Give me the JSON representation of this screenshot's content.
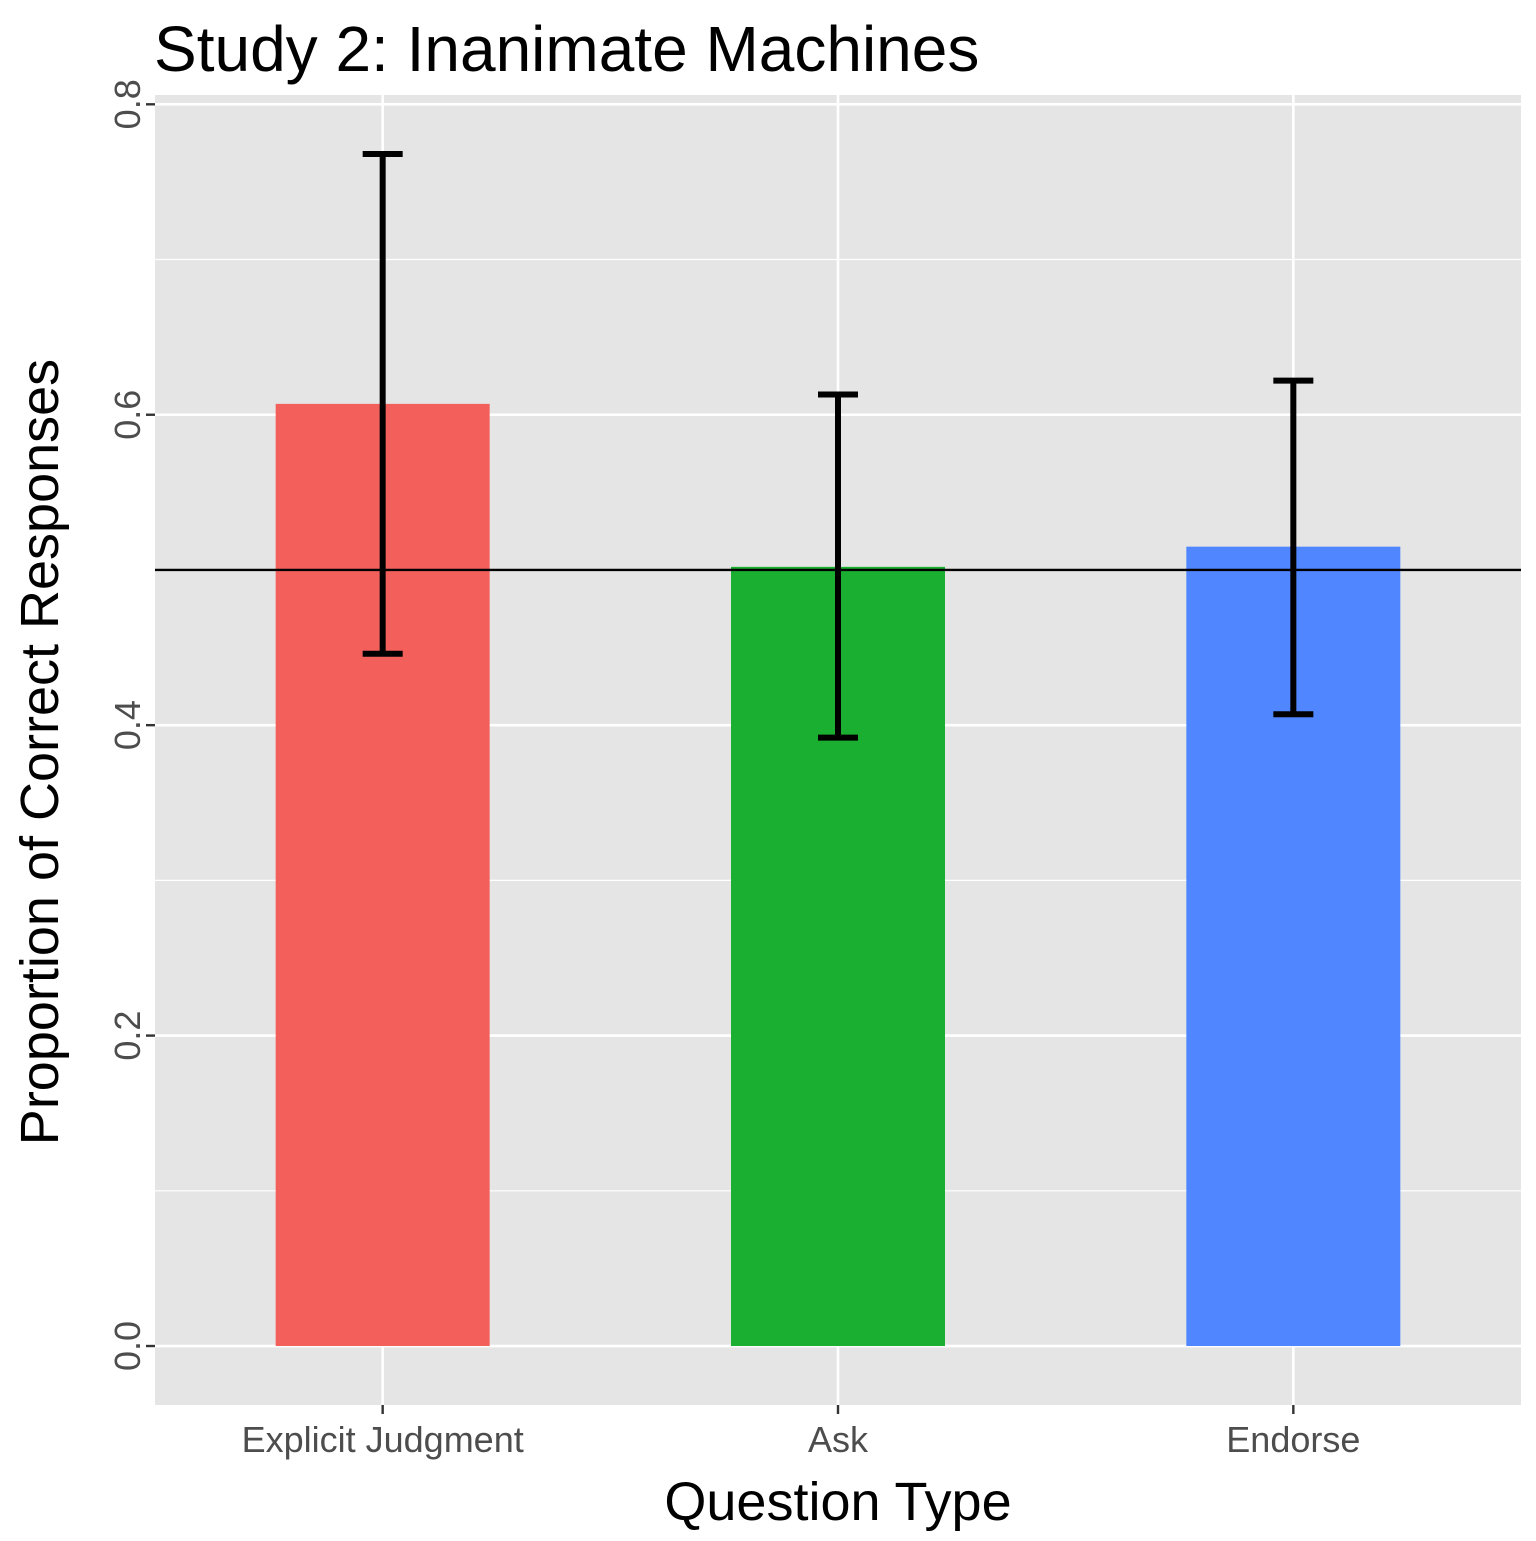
{
  "chart_data": {
    "type": "bar",
    "title": "Study 2: Inanimate Machines",
    "xlabel": "Question Type",
    "ylabel": "Proportion of Correct Responses",
    "categories": [
      "Explicit Judgment",
      "Ask",
      "Endorse"
    ],
    "values": [
      0.607,
      0.502,
      0.515
    ],
    "error_bars": [
      {
        "low": 0.446,
        "high": 0.768
      },
      {
        "low": 0.392,
        "high": 0.613
      },
      {
        "low": 0.407,
        "high": 0.622
      }
    ],
    "bar_colors": [
      "#F3605C",
      "#1AAF30",
      "#5086FF"
    ],
    "reference_line": 0.5,
    "ylim": [
      -0.038,
      0.806
    ],
    "y_ticks": [
      "0.0",
      "0.2",
      "0.4",
      "0.6",
      "0.8"
    ],
    "y_tick_values": [
      0.0,
      0.2,
      0.4,
      0.6,
      0.8
    ],
    "y_minor_tick_values": [
      0.1,
      0.3,
      0.5,
      0.7
    ],
    "grid": true,
    "panel_background": "#E5E5E5",
    "gridline_color": "#FFFFFF",
    "errorbar_color": "#000000",
    "reference_line_color": "#000000"
  }
}
